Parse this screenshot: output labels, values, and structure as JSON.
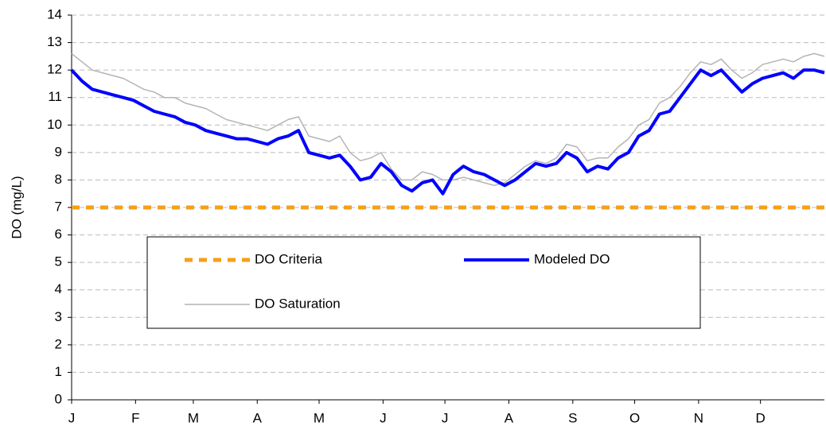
{
  "chart_data": {
    "type": "line",
    "y_label": "DO (mg/L)",
    "xlim": [
      0,
      365
    ],
    "xticks": [
      {
        "value": 0,
        "label": "J"
      },
      {
        "value": 31,
        "label": "F"
      },
      {
        "value": 59,
        "label": "M"
      },
      {
        "value": 90,
        "label": "A"
      },
      {
        "value": 120,
        "label": "M"
      },
      {
        "value": 151,
        "label": "J"
      },
      {
        "value": 181,
        "label": "J"
      },
      {
        "value": 212,
        "label": "A"
      },
      {
        "value": 243,
        "label": "S"
      },
      {
        "value": 273,
        "label": "O"
      },
      {
        "value": 304,
        "label": "N"
      },
      {
        "value": 334,
        "label": "D"
      }
    ],
    "ylim": [
      0,
      14
    ],
    "yticks": [
      0,
      1,
      2,
      3,
      4,
      5,
      6,
      7,
      8,
      9,
      10,
      11,
      12,
      13,
      14
    ],
    "grid": true,
    "x": [
      0,
      5,
      10,
      15,
      20,
      25,
      30,
      35,
      40,
      45,
      50,
      55,
      60,
      65,
      70,
      75,
      80,
      85,
      90,
      95,
      100,
      105,
      110,
      115,
      120,
      125,
      130,
      135,
      140,
      145,
      150,
      155,
      160,
      165,
      170,
      175,
      180,
      185,
      190,
      195,
      200,
      205,
      210,
      215,
      220,
      225,
      230,
      235,
      240,
      245,
      250,
      255,
      260,
      265,
      270,
      275,
      280,
      285,
      290,
      295,
      300,
      305,
      310,
      315,
      320,
      325,
      330,
      335,
      340,
      345,
      350,
      355,
      360,
      365
    ],
    "series": [
      {
        "name": "DO Criteria",
        "color": "#f5a01a",
        "style": "dashed",
        "x": [
          0,
          365
        ],
        "values": [
          7,
          7
        ]
      },
      {
        "name": "Modeled DO",
        "color": "#0000ff",
        "style": "solid",
        "values": [
          12.0,
          11.6,
          11.3,
          11.2,
          11.1,
          11.0,
          10.9,
          10.7,
          10.5,
          10.4,
          10.3,
          10.1,
          10.0,
          9.8,
          9.7,
          9.6,
          9.5,
          9.5,
          9.4,
          9.3,
          9.5,
          9.6,
          9.8,
          9.0,
          8.9,
          8.8,
          8.9,
          8.5,
          8.0,
          8.1,
          8.6,
          8.3,
          7.8,
          7.6,
          7.9,
          8.0,
          7.5,
          8.2,
          8.5,
          8.3,
          8.2,
          8.0,
          7.8,
          8.0,
          8.3,
          8.6,
          8.5,
          8.6,
          9.0,
          8.8,
          8.3,
          8.5,
          8.4,
          8.8,
          9.0,
          9.6,
          9.8,
          10.4,
          10.5,
          11.0,
          11.5,
          12.0,
          11.8,
          12.0,
          11.6,
          11.2,
          11.5,
          11.7,
          11.8,
          11.9,
          11.7,
          12.0,
          12.0,
          11.9
        ]
      },
      {
        "name": "DO Saturation",
        "color": "#b4b4b4",
        "style": "thin",
        "values": [
          12.6,
          12.3,
          12.0,
          11.9,
          11.8,
          11.7,
          11.5,
          11.3,
          11.2,
          11.0,
          11.0,
          10.8,
          10.7,
          10.6,
          10.4,
          10.2,
          10.1,
          10.0,
          9.9,
          9.8,
          10.0,
          10.2,
          10.3,
          9.6,
          9.5,
          9.4,
          9.6,
          9.0,
          8.7,
          8.8,
          9.0,
          8.4,
          8.0,
          8.0,
          8.3,
          8.2,
          8.0,
          8.0,
          8.1,
          8.0,
          7.9,
          7.8,
          7.9,
          8.2,
          8.5,
          8.7,
          8.6,
          8.8,
          9.3,
          9.2,
          8.7,
          8.8,
          8.8,
          9.2,
          9.5,
          10.0,
          10.2,
          10.8,
          11.0,
          11.4,
          11.9,
          12.3,
          12.2,
          12.4,
          12.0,
          11.7,
          11.9,
          12.2,
          12.3,
          12.4,
          12.3,
          12.5,
          12.6,
          12.5
        ]
      }
    ]
  }
}
